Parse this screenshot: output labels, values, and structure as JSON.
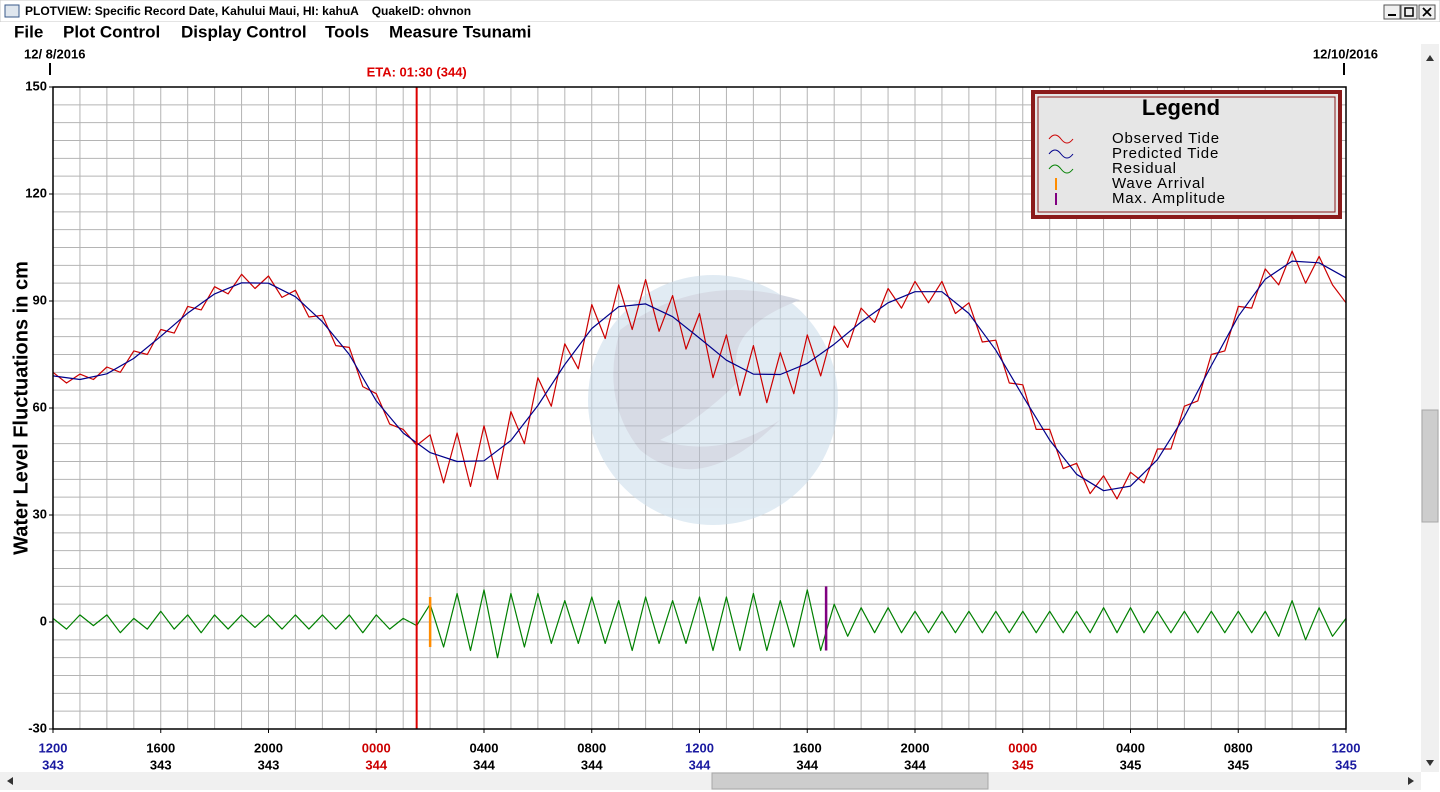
{
  "window": {
    "title": "PLOTVIEW: Specific Record Date, Kahului Maui, HI: kahuA    QuakeID: ohvnon",
    "menu": [
      "File",
      "Plot Control",
      "Display Control",
      "Tools",
      "Measure Tsunami"
    ]
  },
  "chart_data": {
    "type": "line",
    "date_start": "12/ 8/2016",
    "date_end": "12/10/2016",
    "ylabel": "Water Level Fluctuations in cm",
    "legend_title": "Legend",
    "ylim": [
      -30,
      150
    ],
    "yticks": [
      -30,
      0,
      30,
      60,
      90,
      120,
      150
    ],
    "xlim": [
      0,
      48
    ],
    "xticks": [
      {
        "value": 0,
        "label": "1200"
      },
      {
        "value": 4,
        "label": "1600"
      },
      {
        "value": 8,
        "label": "2000"
      },
      {
        "value": 12,
        "label": "0000"
      },
      {
        "value": 16,
        "label": "0400"
      },
      {
        "value": 20,
        "label": "0800"
      },
      {
        "value": 24,
        "label": "1200"
      },
      {
        "value": 28,
        "label": "1600"
      },
      {
        "value": 32,
        "label": "2000"
      },
      {
        "value": 36,
        "label": "0000"
      },
      {
        "value": 40,
        "label": "0400"
      },
      {
        "value": 44,
        "label": "0800"
      },
      {
        "value": 48,
        "label": "1200"
      }
    ],
    "xtick_days": [
      "343",
      "343",
      "343",
      "344",
      "344",
      "344",
      "344",
      "344",
      "344",
      "345",
      "345",
      "345",
      "345"
    ],
    "xtick_colors": [
      "#1a1aa0",
      "#000000",
      "#000000",
      "#cc0000",
      "#000000",
      "#000000",
      "#1a1aa0",
      "#000000",
      "#000000",
      "#cc0000",
      "#000000",
      "#000000",
      "#1a1aa0"
    ],
    "grid": true,
    "ygrid_step": 5,
    "xgrid_step": 1,
    "eta": {
      "label": "ETA: 01:30 (344)",
      "x": 13.5,
      "color": "#dd0000"
    },
    "x": [
      0,
      0.5,
      1,
      1.5,
      2,
      2.5,
      3,
      3.5,
      4,
      4.5,
      5,
      5.5,
      6,
      6.5,
      7,
      7.5,
      8,
      8.5,
      9,
      9.5,
      10,
      10.5,
      11,
      11.5,
      12,
      12.5,
      13,
      13.5,
      14,
      14.5,
      15,
      15.5,
      16,
      16.5,
      17,
      17.5,
      18,
      18.5,
      19,
      19.5,
      20,
      20.5,
      21,
      21.5,
      22,
      22.5,
      23,
      23.5,
      24,
      24.5,
      25,
      25.5,
      26,
      26.5,
      27,
      27.5,
      28,
      28.5,
      29,
      29.5,
      30,
      30.5,
      31,
      31.5,
      32,
      32.5,
      33,
      33.5,
      34,
      34.5,
      35,
      35.5,
      36,
      36.5,
      37,
      37.5,
      38,
      38.5,
      39,
      39.5,
      40,
      40.5,
      41,
      41.5,
      42,
      42.5,
      43,
      43.5,
      44,
      44.5,
      45,
      45.5,
      46,
      46.5,
      47,
      47.5,
      48
    ],
    "series": [
      {
        "name": "Observed Tide",
        "color": "#cc0000",
        "values": [
          70,
          67,
          69.5,
          68,
          71.5,
          70,
          76,
          75,
          82,
          81,
          88.5,
          87.5,
          94,
          92,
          97.5,
          93.5,
          97,
          91,
          93,
          85.5,
          86,
          77.5,
          77,
          66,
          64,
          55.5,
          54,
          49.5,
          52.5,
          39,
          53,
          38,
          55,
          40,
          59,
          50,
          68.5,
          60.5,
          78,
          71,
          89,
          79.5,
          94.5,
          82,
          96,
          81.5,
          91.5,
          76.5,
          86.5,
          68.5,
          80.5,
          63.5,
          77.5,
          61.5,
          75.5,
          64,
          80.5,
          69,
          83,
          77,
          88,
          84,
          93.5,
          88,
          95.5,
          89.5,
          95.5,
          86.5,
          89.5,
          78.5,
          79,
          67,
          66.5,
          54,
          54,
          43,
          44.5,
          36,
          41,
          34.5,
          42,
          39,
          48.5,
          48.5,
          60.5,
          62,
          75,
          76,
          88.5,
          88,
          99,
          94.5,
          104,
          95,
          102.5,
          94.5,
          89.5
        ]
      },
      {
        "name": "Predicted Tide",
        "color": "#00008b",
        "x": [
          0,
          1,
          2,
          3,
          4,
          5,
          6,
          7,
          8,
          9,
          10,
          11,
          12,
          13,
          14,
          15,
          16,
          17,
          18,
          19,
          20,
          21,
          22,
          23,
          24,
          25,
          26,
          27,
          28,
          29,
          30,
          31,
          32,
          33,
          34,
          35,
          36,
          37,
          38,
          39,
          40,
          41,
          42,
          43,
          44,
          45,
          46,
          47,
          48
        ],
        "values": [
          69,
          68,
          69.6,
          73.9,
          80.1,
          86.6,
          92,
          95.1,
          95,
          91.2,
          84.2,
          75,
          62,
          53,
          47.5,
          45,
          45.2,
          50.9,
          60.7,
          72.2,
          82.3,
          88.4,
          89.2,
          85.6,
          79.6,
          73.4,
          69.5,
          69.4,
          72.5,
          77.9,
          84.1,
          89.5,
          92.6,
          92.6,
          86.5,
          76.2,
          63.4,
          51,
          41.4,
          36.8,
          38.1,
          45.5,
          57.6,
          71.9,
          85.7,
          96.1,
          101.2,
          100.7,
          96.5
        ]
      },
      {
        "name": "Residual",
        "color": "#008000",
        "values": [
          1,
          -2,
          2,
          -1,
          2,
          -3,
          1,
          -2,
          3,
          -2,
          2,
          -3,
          2,
          -2,
          2,
          -1.5,
          2,
          -2,
          2,
          -2,
          2,
          -2,
          2,
          -3,
          2,
          -2,
          1,
          -1,
          5,
          -7,
          8,
          -8,
          9,
          -10,
          8,
          -7,
          8,
          -6,
          6,
          -6,
          7,
          -6,
          6,
          -8,
          7,
          -6,
          6,
          -6,
          7,
          -8,
          7,
          -8,
          8,
          -8,
          6,
          -7,
          9,
          -8,
          5,
          -4,
          4,
          -3,
          4,
          -3,
          3,
          -3,
          3,
          -3,
          3,
          -3,
          3,
          -3,
          3,
          -3,
          3,
          -3,
          3,
          -3,
          4,
          -3,
          4,
          -3,
          3,
          -3,
          3,
          -3,
          3,
          -3,
          3,
          -3,
          3,
          -4,
          6,
          -5,
          4,
          -4,
          1
        ]
      }
    ],
    "events": [
      {
        "name": "Wave Arrival",
        "color": "#ff8c00",
        "x": 14,
        "low": -7,
        "high": 7
      },
      {
        "name": "Max. Amplitude",
        "color": "#800080",
        "x": 28.7,
        "low": -8,
        "high": 10
      }
    ]
  }
}
